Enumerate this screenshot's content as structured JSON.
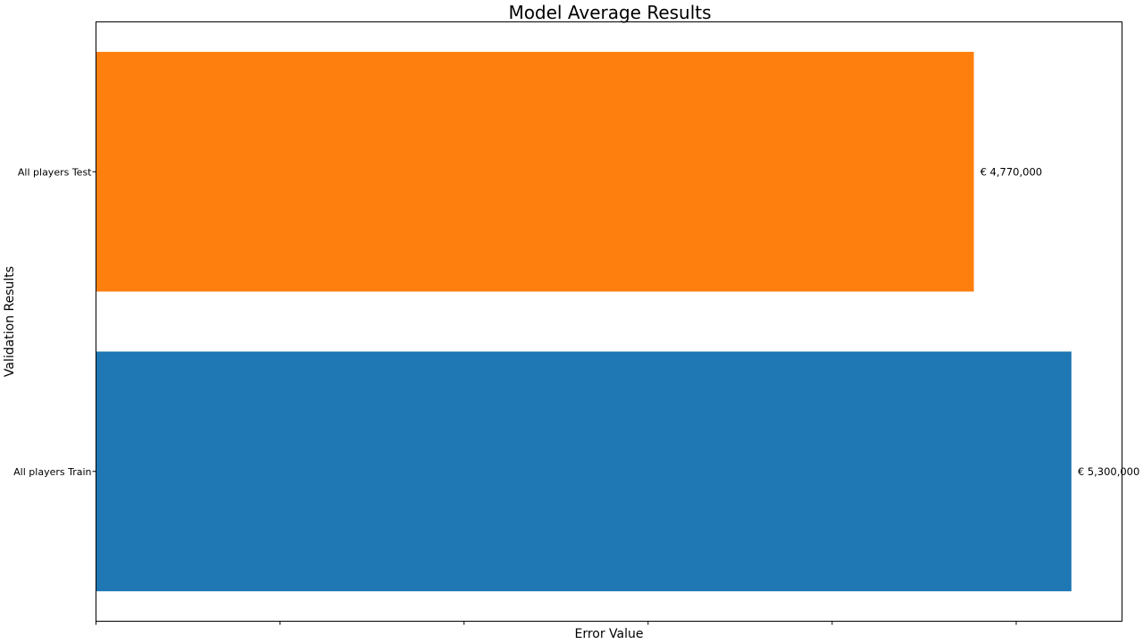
{
  "chart_data": {
    "type": "bar",
    "orientation": "horizontal",
    "title": "Model Average Results",
    "xlabel": "Error Value",
    "ylabel": "Validation Results",
    "categories": [
      "All players Train",
      "All players Test"
    ],
    "values": [
      5300000,
      4770000
    ],
    "colors": [
      "#1f77b4",
      "#ff7f0e"
    ],
    "value_labels": [
      "€ 5,300,000",
      "€ 4,770,000"
    ],
    "xlim": [
      0,
      5575000
    ],
    "x_tick_values": [
      0,
      1000000,
      2000000,
      3000000,
      4000000,
      5000000
    ],
    "x_tick_labels_shown": false,
    "grid": false,
    "legend": "none"
  }
}
